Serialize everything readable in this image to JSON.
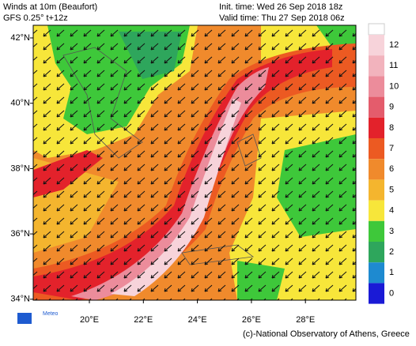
{
  "header": {
    "title": "Winds at 10m (Beaufort)",
    "model": "GFS 0.25° t+12z",
    "init_time": "Init. time: Wed 26 Sep 2018 18z",
    "valid_time": "Valid time: Thu 27 Sep 2018 06z"
  },
  "map": {
    "lat_labels": [
      "42°N",
      "40°N",
      "38°N",
      "36°N",
      "34°N"
    ],
    "lon_labels": [
      "20°E",
      "22°E",
      "24°E",
      "26°E",
      "28°E"
    ]
  },
  "colorbar": [
    {
      "label": "12",
      "color": "#f7d3da"
    },
    {
      "label": "11",
      "color": "#f2b3bd"
    },
    {
      "label": "10",
      "color": "#ec8c9b"
    },
    {
      "label": "9",
      "color": "#e45c6c"
    },
    {
      "label": "8",
      "color": "#e3222b"
    },
    {
      "label": "7",
      "color": "#ec5a22"
    },
    {
      "label": "6",
      "color": "#f08a2c"
    },
    {
      "label": "5",
      "color": "#f4b52e"
    },
    {
      "label": "4",
      "color": "#f7e63a"
    },
    {
      "label": "3",
      "color": "#3ec83a"
    },
    {
      "label": "2",
      "color": "#2ea65c"
    },
    {
      "label": "1",
      "color": "#1e8ad0"
    },
    {
      "label": "0",
      "color": "#1a1ad6"
    }
  ],
  "footer": {
    "logo": "Meteo",
    "credit": "(c)-National Observatory of Athens, Greece"
  }
}
